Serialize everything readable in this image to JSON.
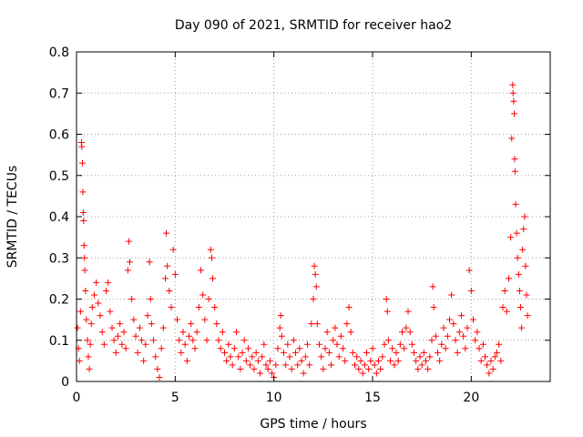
{
  "chart_data": {
    "type": "scatter",
    "title": "Day 090 of 2021, SRMTID for receiver hao2",
    "xlabel": "GPS time / hours",
    "ylabel": "SRMTID / TECUs",
    "xlim": [
      0,
      24
    ],
    "ylim": [
      0,
      0.8
    ],
    "grid": true,
    "marker": "+",
    "colors": {
      "points": "#ff0000",
      "grid": "#a0a0a0",
      "axes": "#000000"
    },
    "x_ticks": [
      {
        "value": 0,
        "label": "0"
      },
      {
        "value": 5,
        "label": "5"
      },
      {
        "value": 10,
        "label": "10"
      },
      {
        "value": 15,
        "label": "15"
      },
      {
        "value": 20,
        "label": "20"
      }
    ],
    "y_ticks": [
      {
        "value": 0,
        "label": "0"
      },
      {
        "value": 0.1,
        "label": "0.1"
      },
      {
        "value": 0.2,
        "label": "0.2"
      },
      {
        "value": 0.3,
        "label": "0.3"
      },
      {
        "value": 0.4,
        "label": "0.4"
      },
      {
        "value": 0.5,
        "label": "0.5"
      },
      {
        "value": 0.6,
        "label": "0.6"
      },
      {
        "value": 0.7,
        "label": "0.7"
      },
      {
        "value": 0.8,
        "label": "0.8"
      }
    ],
    "series": [
      {
        "name": "SRMTID",
        "points": [
          [
            0.05,
            0.13
          ],
          [
            0.1,
            0.08
          ],
          [
            0.15,
            0.05
          ],
          [
            0.2,
            0.17
          ],
          [
            0.25,
            0.58
          ],
          [
            0.27,
            0.57
          ],
          [
            0.3,
            0.53
          ],
          [
            0.32,
            0.46
          ],
          [
            0.34,
            0.41
          ],
          [
            0.36,
            0.39
          ],
          [
            0.38,
            0.33
          ],
          [
            0.4,
            0.3
          ],
          [
            0.42,
            0.27
          ],
          [
            0.45,
            0.22
          ],
          [
            0.5,
            0.15
          ],
          [
            0.55,
            0.1
          ],
          [
            0.6,
            0.06
          ],
          [
            0.65,
            0.03
          ],
          [
            0.7,
            0.09
          ],
          [
            0.75,
            0.14
          ],
          [
            0.8,
            0.18
          ],
          [
            0.9,
            0.21
          ],
          [
            1.0,
            0.24
          ],
          [
            1.1,
            0.19
          ],
          [
            1.2,
            0.16
          ],
          [
            1.3,
            0.12
          ],
          [
            1.4,
            0.09
          ],
          [
            1.5,
            0.22
          ],
          [
            1.6,
            0.24
          ],
          [
            1.7,
            0.17
          ],
          [
            1.8,
            0.13
          ],
          [
            1.9,
            0.1
          ],
          [
            2.0,
            0.07
          ],
          [
            2.1,
            0.11
          ],
          [
            2.2,
            0.14
          ],
          [
            2.3,
            0.09
          ],
          [
            2.4,
            0.12
          ],
          [
            2.5,
            0.08
          ],
          [
            2.6,
            0.27
          ],
          [
            2.65,
            0.34
          ],
          [
            2.7,
            0.29
          ],
          [
            2.8,
            0.2
          ],
          [
            2.9,
            0.15
          ],
          [
            3.0,
            0.11
          ],
          [
            3.1,
            0.07
          ],
          [
            3.2,
            0.13
          ],
          [
            3.3,
            0.1
          ],
          [
            3.4,
            0.05
          ],
          [
            3.5,
            0.09
          ],
          [
            3.6,
            0.16
          ],
          [
            3.7,
            0.29
          ],
          [
            3.75,
            0.2
          ],
          [
            3.8,
            0.14
          ],
          [
            3.9,
            0.1
          ],
          [
            4.0,
            0.06
          ],
          [
            4.1,
            0.03
          ],
          [
            4.2,
            0.01
          ],
          [
            4.3,
            0.08
          ],
          [
            4.4,
            0.13
          ],
          [
            4.5,
            0.25
          ],
          [
            4.55,
            0.36
          ],
          [
            4.6,
            0.28
          ],
          [
            4.7,
            0.22
          ],
          [
            4.8,
            0.18
          ],
          [
            4.9,
            0.32
          ],
          [
            5.0,
            0.26
          ],
          [
            5.1,
            0.15
          ],
          [
            5.2,
            0.1
          ],
          [
            5.3,
            0.07
          ],
          [
            5.4,
            0.12
          ],
          [
            5.5,
            0.09
          ],
          [
            5.6,
            0.05
          ],
          [
            5.7,
            0.11
          ],
          [
            5.8,
            0.14
          ],
          [
            5.9,
            0.1
          ],
          [
            6.0,
            0.08
          ],
          [
            6.1,
            0.12
          ],
          [
            6.2,
            0.18
          ],
          [
            6.3,
            0.27
          ],
          [
            6.4,
            0.21
          ],
          [
            6.5,
            0.15
          ],
          [
            6.6,
            0.1
          ],
          [
            6.7,
            0.2
          ],
          [
            6.8,
            0.32
          ],
          [
            6.85,
            0.3
          ],
          [
            6.9,
            0.25
          ],
          [
            7.0,
            0.18
          ],
          [
            7.1,
            0.14
          ],
          [
            7.2,
            0.1
          ],
          [
            7.3,
            0.08
          ],
          [
            7.4,
            0.12
          ],
          [
            7.5,
            0.07
          ],
          [
            7.6,
            0.05
          ],
          [
            7.7,
            0.09
          ],
          [
            7.8,
            0.06
          ],
          [
            7.9,
            0.04
          ],
          [
            8.0,
            0.08
          ],
          [
            8.1,
            0.12
          ],
          [
            8.2,
            0.06
          ],
          [
            8.3,
            0.03
          ],
          [
            8.4,
            0.07
          ],
          [
            8.5,
            0.1
          ],
          [
            8.6,
            0.05
          ],
          [
            8.7,
            0.08
          ],
          [
            8.8,
            0.04
          ],
          [
            8.9,
            0.06
          ],
          [
            9.0,
            0.03
          ],
          [
            9.1,
            0.07
          ],
          [
            9.2,
            0.05
          ],
          [
            9.3,
            0.02
          ],
          [
            9.4,
            0.06
          ],
          [
            9.5,
            0.09
          ],
          [
            9.6,
            0.04
          ],
          [
            9.7,
            0.03
          ],
          [
            9.8,
            0.05
          ],
          [
            9.9,
            0.02
          ],
          [
            10.0,
            0.01
          ],
          [
            10.1,
            0.04
          ],
          [
            10.2,
            0.08
          ],
          [
            10.3,
            0.13
          ],
          [
            10.35,
            0.16
          ],
          [
            10.4,
            0.11
          ],
          [
            10.5,
            0.07
          ],
          [
            10.6,
            0.04
          ],
          [
            10.7,
            0.09
          ],
          [
            10.8,
            0.06
          ],
          [
            10.9,
            0.03
          ],
          [
            11.0,
            0.1
          ],
          [
            11.1,
            0.07
          ],
          [
            11.2,
            0.04
          ],
          [
            11.3,
            0.08
          ],
          [
            11.4,
            0.05
          ],
          [
            11.5,
            0.02
          ],
          [
            11.6,
            0.06
          ],
          [
            11.7,
            0.09
          ],
          [
            11.8,
            0.04
          ],
          [
            11.9,
            0.14
          ],
          [
            12.0,
            0.2
          ],
          [
            12.05,
            0.28
          ],
          [
            12.1,
            0.26
          ],
          [
            12.15,
            0.23
          ],
          [
            12.2,
            0.14
          ],
          [
            12.3,
            0.09
          ],
          [
            12.4,
            0.06
          ],
          [
            12.5,
            0.03
          ],
          [
            12.6,
            0.08
          ],
          [
            12.7,
            0.12
          ],
          [
            12.8,
            0.07
          ],
          [
            12.9,
            0.04
          ],
          [
            13.0,
            0.1
          ],
          [
            13.1,
            0.13
          ],
          [
            13.2,
            0.09
          ],
          [
            13.3,
            0.06
          ],
          [
            13.4,
            0.11
          ],
          [
            13.5,
            0.08
          ],
          [
            13.6,
            0.05
          ],
          [
            13.7,
            0.14
          ],
          [
            13.8,
            0.18
          ],
          [
            13.9,
            0.12
          ],
          [
            14.0,
            0.07
          ],
          [
            14.1,
            0.04
          ],
          [
            14.2,
            0.06
          ],
          [
            14.3,
            0.03
          ],
          [
            14.4,
            0.05
          ],
          [
            14.5,
            0.02
          ],
          [
            14.6,
            0.04
          ],
          [
            14.7,
            0.07
          ],
          [
            14.8,
            0.03
          ],
          [
            14.9,
            0.05
          ],
          [
            15.0,
            0.08
          ],
          [
            15.1,
            0.04
          ],
          [
            15.2,
            0.02
          ],
          [
            15.3,
            0.05
          ],
          [
            15.4,
            0.03
          ],
          [
            15.5,
            0.06
          ],
          [
            15.6,
            0.09
          ],
          [
            15.7,
            0.2
          ],
          [
            15.75,
            0.17
          ],
          [
            15.8,
            0.1
          ],
          [
            15.9,
            0.05
          ],
          [
            16.0,
            0.08
          ],
          [
            16.1,
            0.04
          ],
          [
            16.2,
            0.07
          ],
          [
            16.3,
            0.05
          ],
          [
            16.4,
            0.09
          ],
          [
            16.5,
            0.12
          ],
          [
            16.6,
            0.08
          ],
          [
            16.7,
            0.13
          ],
          [
            16.8,
            0.17
          ],
          [
            16.9,
            0.12
          ],
          [
            17.0,
            0.09
          ],
          [
            17.1,
            0.07
          ],
          [
            17.2,
            0.05
          ],
          [
            17.3,
            0.03
          ],
          [
            17.4,
            0.06
          ],
          [
            17.5,
            0.04
          ],
          [
            17.6,
            0.07
          ],
          [
            17.7,
            0.05
          ],
          [
            17.8,
            0.03
          ],
          [
            17.9,
            0.06
          ],
          [
            18.0,
            0.1
          ],
          [
            18.05,
            0.23
          ],
          [
            18.1,
            0.18
          ],
          [
            18.2,
            0.11
          ],
          [
            18.3,
            0.07
          ],
          [
            18.4,
            0.05
          ],
          [
            18.5,
            0.09
          ],
          [
            18.6,
            0.13
          ],
          [
            18.7,
            0.08
          ],
          [
            18.8,
            0.11
          ],
          [
            18.9,
            0.15
          ],
          [
            19.0,
            0.21
          ],
          [
            19.1,
            0.14
          ],
          [
            19.2,
            0.1
          ],
          [
            19.3,
            0.07
          ],
          [
            19.4,
            0.12
          ],
          [
            19.5,
            0.16
          ],
          [
            19.6,
            0.11
          ],
          [
            19.7,
            0.08
          ],
          [
            19.8,
            0.13
          ],
          [
            19.9,
            0.27
          ],
          [
            20.0,
            0.22
          ],
          [
            20.1,
            0.15
          ],
          [
            20.2,
            0.1
          ],
          [
            20.3,
            0.12
          ],
          [
            20.4,
            0.08
          ],
          [
            20.5,
            0.05
          ],
          [
            20.6,
            0.09
          ],
          [
            20.7,
            0.06
          ],
          [
            20.8,
            0.04
          ],
          [
            20.9,
            0.02
          ],
          [
            21.0,
            0.05
          ],
          [
            21.1,
            0.03
          ],
          [
            21.2,
            0.06
          ],
          [
            21.3,
            0.07
          ],
          [
            21.4,
            0.09
          ],
          [
            21.5,
            0.05
          ],
          [
            21.6,
            0.18
          ],
          [
            21.7,
            0.22
          ],
          [
            21.8,
            0.17
          ],
          [
            21.9,
            0.25
          ],
          [
            22.0,
            0.35
          ],
          [
            22.05,
            0.59
          ],
          [
            22.1,
            0.72
          ],
          [
            22.12,
            0.7
          ],
          [
            22.15,
            0.68
          ],
          [
            22.18,
            0.65
          ],
          [
            22.2,
            0.54
          ],
          [
            22.22,
            0.51
          ],
          [
            22.25,
            0.43
          ],
          [
            22.3,
            0.36
          ],
          [
            22.35,
            0.3
          ],
          [
            22.4,
            0.26
          ],
          [
            22.45,
            0.22
          ],
          [
            22.5,
            0.18
          ],
          [
            22.55,
            0.13
          ],
          [
            22.6,
            0.32
          ],
          [
            22.65,
            0.37
          ],
          [
            22.7,
            0.4
          ],
          [
            22.75,
            0.28
          ],
          [
            22.8,
            0.21
          ],
          [
            22.85,
            0.16
          ]
        ]
      }
    ]
  }
}
